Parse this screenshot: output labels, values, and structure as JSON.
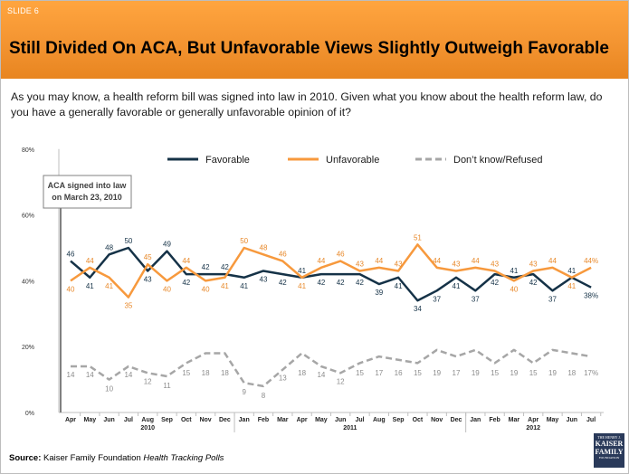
{
  "slide_label": "SLIDE 6",
  "title": "Still Divided On ACA, But Unfavorable Views Slightly Outweigh Favorable",
  "question": "As you may know, a health reform bill was signed into law in 2010. Given what you know about the health reform law, do you have a generally favorable or generally unfavorable opinion of it?",
  "source": {
    "lead": "Source:",
    "org": "Kaiser Family Foundation",
    "series": "Health Tracking Polls"
  },
  "logo": {
    "line1": "THE HENRY J.",
    "line2": "KAISER",
    "line3": "FAMILY",
    "line4": "FOUNDATION"
  },
  "colors": {
    "favorable": "#153247",
    "unfavorable": "#f7993d",
    "dontknow": "#a6a6a6",
    "header": "#f39431"
  },
  "annotation": {
    "line1": "ACA signed into law",
    "line2": "on March 23, 2010"
  },
  "chart_data": {
    "type": "line",
    "ylim": [
      0,
      80
    ],
    "y_ticks": [
      "0%",
      "20%",
      "40%",
      "60%",
      "80%"
    ],
    "y_tick_values": [
      0,
      20,
      40,
      60,
      80
    ],
    "grid": false,
    "legend_position": "top",
    "categories": [
      "Apr",
      "May",
      "Jun",
      "Jul",
      "Aug",
      "Sep",
      "Oct",
      "Nov",
      "Dec",
      "Jan",
      "Feb",
      "Mar",
      "Apr",
      "May",
      "Jun",
      "Jul",
      "Aug",
      "Sep",
      "Oct",
      "Nov",
      "Dec",
      "Jan",
      "Feb",
      "Mar",
      "Apr",
      "May",
      "Jun",
      "Jul"
    ],
    "years": [
      {
        "label": "2010",
        "start": 0,
        "end": 8
      },
      {
        "label": "2011",
        "start": 9,
        "end": 20
      },
      {
        "label": "2012",
        "start": 21,
        "end": 27
      }
    ],
    "series": [
      {
        "name": "Favorable",
        "color": "#153247",
        "dashed": false,
        "values": [
          46,
          41,
          48,
          50,
          43,
          49,
          42,
          42,
          42,
          41,
          43,
          42,
          41,
          42,
          42,
          42,
          39,
          41,
          34,
          37,
          41,
          37,
          42,
          41,
          42,
          37,
          41,
          38
        ],
        "labels": [
          "46",
          "41",
          "48",
          "50",
          "43",
          "49",
          "42",
          "42",
          "42",
          "41",
          "43",
          "42",
          "41",
          "42",
          "42",
          "42",
          "39",
          "41",
          "34",
          "37",
          "41",
          "37",
          "42",
          "41",
          "42",
          "37",
          "41",
          "38%"
        ]
      },
      {
        "name": "Unfavorable",
        "color": "#f7993d",
        "dashed": false,
        "values": [
          40,
          44,
          41,
          35,
          45,
          40,
          44,
          40,
          41,
          50,
          48,
          46,
          41,
          44,
          46,
          43,
          44,
          43,
          51,
          44,
          43,
          44,
          43,
          40,
          43,
          44,
          41,
          44
        ],
        "labels": [
          "40",
          "44",
          "41",
          "35",
          "45",
          "40",
          "44",
          "40",
          "41",
          "50",
          "48",
          "46",
          "41",
          "44",
          "46",
          "43",
          "44",
          "43",
          "51",
          "44",
          "43",
          "44",
          "43",
          "40",
          "43",
          "44",
          "41",
          "44%"
        ]
      },
      {
        "name": "Don’t know/Refused",
        "color": "#a6a6a6",
        "dashed": true,
        "values": [
          14,
          14,
          10,
          14,
          12,
          11,
          15,
          18,
          18,
          9,
          8,
          13,
          18,
          14,
          12,
          15,
          17,
          16,
          15,
          19,
          17,
          19,
          15,
          19,
          15,
          19,
          18,
          17
        ],
        "labels": [
          "14",
          "14",
          "10",
          "14",
          "12",
          "11",
          "15",
          "18",
          "18",
          "9",
          "8",
          "13",
          "18",
          "14",
          "12",
          "15",
          "17",
          "16",
          "15",
          "19",
          "17",
          "19",
          "15",
          "19",
          "15",
          "19",
          "18",
          "17%"
        ]
      }
    ]
  }
}
